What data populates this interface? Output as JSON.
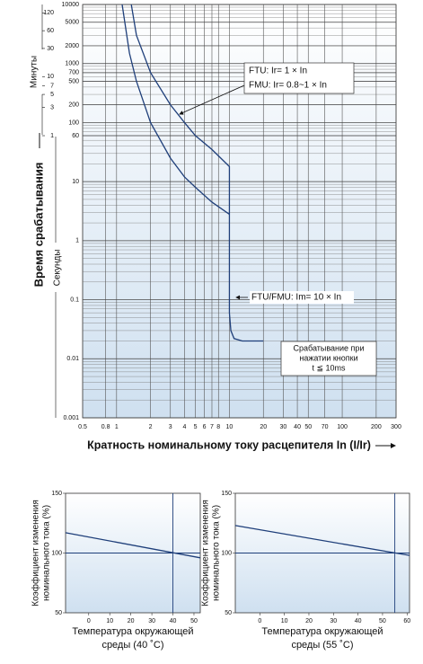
{
  "chart_data": [
    {
      "type": "line",
      "ylabel": "Время срабатывания",
      "ylabel_minutes": "Минуты",
      "ylabel_seconds": "Секунды",
      "xlabel": "Кратность номинальному току расцепителя In (I/Ir)",
      "xlog": true,
      "ylog": true,
      "grid": true,
      "xlim": [
        0.5,
        300
      ],
      "ylim": [
        0.001,
        10000
      ],
      "xticks": [
        0.5,
        0.8,
        1,
        2,
        3,
        4,
        5,
        6,
        7,
        8,
        10,
        20,
        30,
        40,
        50,
        70,
        100,
        200,
        300
      ],
      "yticks": [
        10000,
        5000,
        2000,
        1000,
        700,
        500,
        200,
        100,
        60,
        10,
        1,
        0.1,
        0.01,
        0.001
      ],
      "y2lim": [
        1.66667e-05,
        166.6667
      ],
      "y2ticks": [
        120,
        60,
        30,
        10,
        7,
        5,
        3,
        1
      ],
      "series": [
        {
          "color": "#1f3f7a",
          "x": [
            1.35,
            1.5,
            2,
            3,
            4,
            5,
            7,
            10,
            10,
            10.3,
            11,
            13,
            20
          ],
          "values": [
            10000,
            3000,
            700,
            200,
            100,
            60,
            35,
            18,
            0.06,
            0.03,
            0.022,
            0.02,
            0.02
          ]
        },
        {
          "color": "#1f3f7a",
          "x": [
            1.12,
            1.3,
            1.5,
            2,
            3,
            4,
            5,
            7,
            10
          ],
          "values": [
            10000,
            1500,
            500,
            100,
            25,
            12,
            8,
            4.5,
            2.8
          ]
        }
      ],
      "annotations": [
        [
          "FTU: Ir= 1 × In",
          "FMU: Ir= 0.8~1 × In"
        ],
        [
          "FTU/FMU: Im= 10 × In"
        ],
        [
          "Срабатывание при",
          "нажатии кнопки",
          "t ≦ 10ms"
        ]
      ]
    },
    {
      "type": "line",
      "ylabel": [
        "Коэффициент изменения",
        "номинального тока (%)"
      ],
      "xlabel": [
        "Температура окружающей",
        "среды (40 ˚C)"
      ],
      "xlim": [
        -11,
        53
      ],
      "ylim": [
        50,
        150
      ],
      "xticks": [
        0,
        10,
        20,
        30,
        40,
        50
      ],
      "yticks": [
        50,
        100,
        150
      ],
      "hline": 100,
      "vline": 40,
      "series": [
        {
          "color": "#1f3f7a",
          "x": [
            -11,
            53
          ],
          "values": [
            117,
            96
          ]
        }
      ]
    },
    {
      "type": "line",
      "ylabel": [
        "Коэффициент изменения",
        "номинального тока (%)"
      ],
      "xlabel": [
        "Температура окружающей",
        "среды (55 ˚C)"
      ],
      "xlim": [
        -10,
        61
      ],
      "ylim": [
        50,
        150
      ],
      "xticks": [
        0,
        10,
        20,
        30,
        40,
        50,
        60
      ],
      "yticks": [
        50,
        100,
        150
      ],
      "hline": 100,
      "vline": 55,
      "series": [
        {
          "color": "#1f3f7a",
          "x": [
            -10,
            61
          ],
          "values": [
            123,
            98
          ]
        }
      ]
    }
  ]
}
